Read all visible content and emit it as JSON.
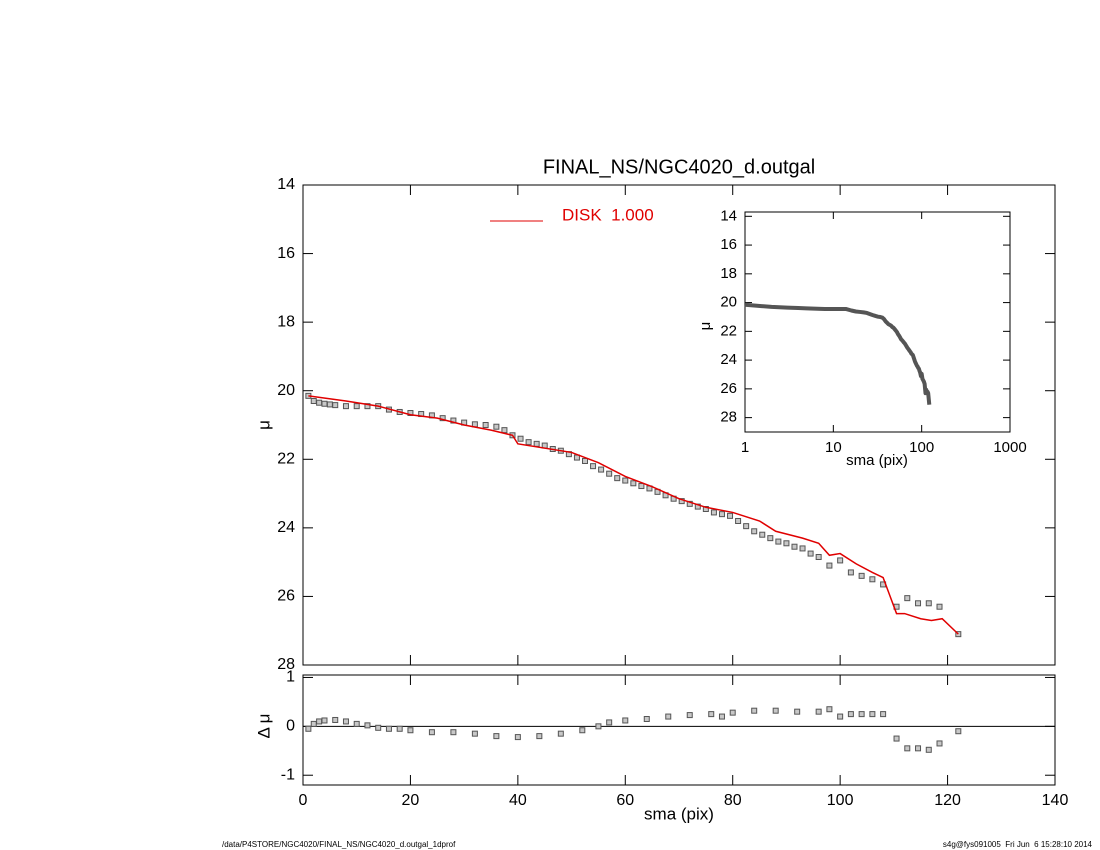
{
  "chart_data": [
    {
      "type": "scatter",
      "title": "FINAL_NS/NGC4020_d.outgal",
      "ylabel": "μ",
      "xlim": [
        0,
        140
      ],
      "xticks": [
        0,
        20,
        40,
        60,
        80,
        100,
        120,
        140
      ],
      "ylim": [
        14,
        28
      ],
      "yticks": [
        14,
        16,
        18,
        20,
        22,
        24,
        26,
        28
      ],
      "y_inverted": true,
      "series": [
        {
          "color": "#555555",
          "marker": "square",
          "x": [
            1,
            2,
            3,
            4,
            5,
            6,
            8,
            10,
            12,
            14,
            16,
            18,
            20,
            22,
            24,
            26,
            28,
            30,
            32,
            34,
            36,
            37.5,
            39,
            40.5,
            42,
            43.5,
            45,
            46.5,
            48,
            49.5,
            51,
            52.5,
            54,
            55.5,
            57,
            58.5,
            60,
            61.5,
            63,
            64.5,
            66,
            67.5,
            69,
            70.5,
            72,
            73.5,
            75,
            76.5,
            78,
            79.5,
            81,
            82.5,
            84,
            85.5,
            87,
            88.5,
            90,
            91.5,
            93,
            94.5,
            96,
            98,
            100,
            102,
            104,
            106,
            108,
            110.5,
            112.5,
            114.5,
            116.5,
            118.5,
            122
          ],
          "values": [
            20.15,
            20.3,
            20.35,
            20.38,
            20.4,
            20.42,
            20.45,
            20.45,
            20.45,
            20.45,
            20.55,
            20.62,
            20.65,
            20.68,
            20.72,
            20.8,
            20.87,
            20.93,
            20.98,
            21.0,
            21.05,
            21.15,
            21.3,
            21.4,
            21.5,
            21.55,
            21.6,
            21.7,
            21.75,
            21.85,
            21.95,
            22.05,
            22.2,
            22.3,
            22.42,
            22.55,
            22.62,
            22.7,
            22.78,
            22.85,
            22.95,
            23.05,
            23.15,
            23.22,
            23.3,
            23.38,
            23.45,
            23.55,
            23.6,
            23.65,
            23.8,
            23.95,
            24.1,
            24.2,
            24.3,
            24.4,
            24.45,
            24.55,
            24.6,
            24.75,
            24.85,
            25.1,
            24.95,
            25.3,
            25.4,
            25.5,
            25.65,
            26.3,
            26.05,
            26.2,
            26.2,
            26.3,
            27.1
          ]
        },
        {
          "name": "DISK  1.000",
          "color": "#e00000",
          "marker": "line",
          "x": [
            1,
            8,
            14,
            20,
            25,
            30,
            35,
            39,
            40,
            50,
            55,
            60,
            65,
            70,
            75,
            80,
            85,
            88,
            93,
            96,
            98,
            100,
            103,
            106,
            108,
            110.5,
            112,
            115,
            117,
            119,
            122
          ],
          "values": [
            20.15,
            20.3,
            20.45,
            20.7,
            20.8,
            21.0,
            21.15,
            21.3,
            21.55,
            21.8,
            22.1,
            22.5,
            22.8,
            23.15,
            23.4,
            23.55,
            23.8,
            24.1,
            24.3,
            24.45,
            24.8,
            24.75,
            25.05,
            25.3,
            25.45,
            26.5,
            26.5,
            26.65,
            26.7,
            26.65,
            27.1
          ]
        }
      ]
    },
    {
      "type": "scatter",
      "xlabel": "sma (pix)",
      "ylabel": "Δ μ",
      "xlim": [
        0,
        140
      ],
      "xticks": [
        0,
        20,
        40,
        60,
        80,
        100,
        120,
        140
      ],
      "ylim": [
        -1.2,
        1.05
      ],
      "yticks": [
        -1,
        0,
        1
      ],
      "hline": 0,
      "series": [
        {
          "color": "#555555",
          "marker": "square",
          "x": [
            1,
            2,
            3,
            4,
            6,
            8,
            10,
            12,
            14,
            16,
            18,
            20,
            24,
            28,
            32,
            36,
            40,
            44,
            48,
            52,
            55,
            57,
            60,
            64,
            68,
            72,
            76,
            78,
            80,
            84,
            88,
            92,
            96,
            98,
            100,
            102,
            104,
            106,
            108,
            110.5,
            112.5,
            114.5,
            116.5,
            118.5,
            122
          ],
          "values": [
            -0.05,
            0.05,
            0.1,
            0.12,
            0.13,
            0.1,
            0.05,
            0.02,
            -0.03,
            -0.05,
            -0.05,
            -0.08,
            -0.12,
            -0.12,
            -0.15,
            -0.2,
            -0.22,
            -0.2,
            -0.15,
            -0.08,
            0.0,
            0.08,
            0.12,
            0.15,
            0.2,
            0.23,
            0.25,
            0.2,
            0.28,
            0.32,
            0.32,
            0.3,
            0.3,
            0.35,
            0.2,
            0.25,
            0.25,
            0.25,
            0.25,
            -0.25,
            -0.45,
            -0.45,
            -0.48,
            -0.35,
            -0.1
          ]
        }
      ]
    },
    {
      "type": "line",
      "xlabel": "sma (pix)",
      "ylabel": "μ",
      "log_x": true,
      "xlim": [
        1,
        1000
      ],
      "xticks": [
        1,
        10,
        100,
        1000
      ],
      "ylim": [
        13.7,
        29
      ],
      "yticks": [
        14,
        16,
        18,
        20,
        22,
        24,
        26,
        28
      ],
      "y_inverted": true,
      "color": "#555555",
      "data_from": "chart_data.0.series.0"
    }
  ],
  "footer": {
    "left": "/data/P4STORE/NGC4020/FINAL_NS/NGC4020_d.outgal_1dprof",
    "right": "s4g@fys091005  Fri Jun  6 15:28:10 2014"
  }
}
